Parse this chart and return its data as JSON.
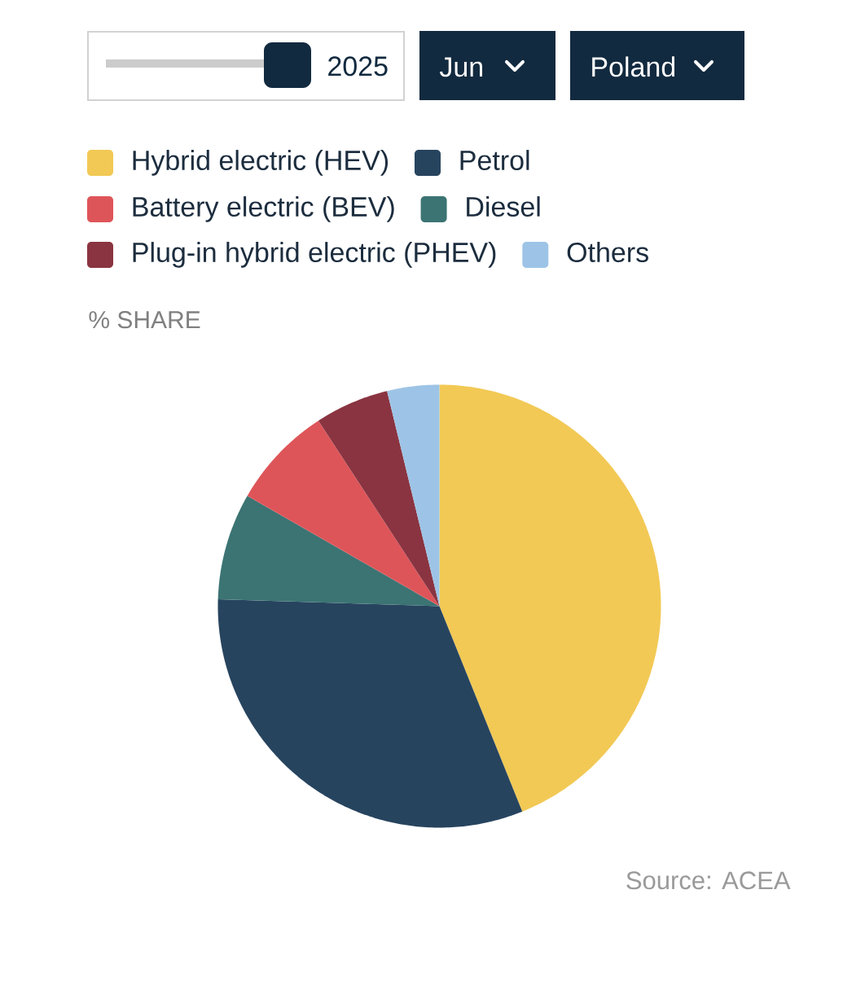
{
  "chart_data": {
    "type": "pie",
    "title": "% SHARE",
    "categories": [
      "Hybrid electric (HEV)",
      "Petrol",
      "Diesel",
      "Battery electric (BEV)",
      "Plug-in hybrid electric (PHEV)",
      "Others"
    ],
    "values": [
      43.9,
      31.6,
      7.8,
      7.5,
      5.4,
      3.8
    ],
    "colors": [
      "#f2c955",
      "#27445f",
      "#3b7473",
      "#de5559",
      "#8a3441",
      "#9dc4e6"
    ],
    "legend": "top",
    "annotations": [
      "2025",
      "Jun",
      "Poland",
      "Source: ACEA"
    ]
  }
}
